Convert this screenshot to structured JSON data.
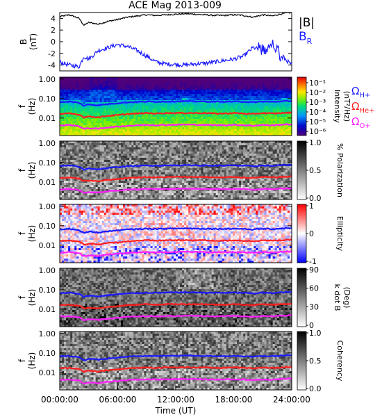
{
  "title": "ACE Mag 2013-009",
  "xaxis": {
    "label": "Time (UT)",
    "ticks": [
      "00:00:00",
      "06:00:00",
      "12:00:00",
      "18:00:00",
      "24:00:00"
    ],
    "range_hours": [
      0,
      24
    ]
  },
  "colors": {
    "B_total": "#000000",
    "B_R": "#1a1aff",
    "omega_H": "#1a1aff",
    "omega_He": "#ff2020",
    "omega_O": "#ff20ff"
  },
  "legend_top": {
    "b_total": "|B|",
    "b_r": "B",
    "b_r_sub": "R"
  },
  "legend_gyro": {
    "omega": "Ω",
    "h": "H+",
    "he": "He+",
    "o": "O+"
  },
  "panel_ylabel": "f",
  "panel_yunit": "(Hz)",
  "panel_yticks": [
    "1.00",
    "0.10",
    "0.01"
  ],
  "chart_data": [
    {
      "type": "line",
      "panel": "magnetic-field",
      "ylabel": "B",
      "yunit": "(nT)",
      "ylim": [
        -5,
        5
      ],
      "yticks": [
        "4",
        "2",
        "0",
        "-2",
        "-4"
      ],
      "x_hours": [
        0,
        1,
        2,
        2.5,
        3,
        4,
        5,
        6,
        7,
        8,
        9,
        10,
        11,
        12,
        13,
        14,
        15,
        16,
        17,
        18,
        19,
        20,
        21,
        22,
        23,
        24
      ],
      "series": [
        {
          "name": "|B|",
          "values": [
            4.3,
            4.6,
            4.0,
            2.8,
            3.3,
            3.0,
            3.5,
            3.8,
            4.2,
            4.4,
            4.6,
            4.5,
            4.6,
            4.7,
            4.8,
            4.7,
            4.6,
            4.5,
            4.5,
            4.6,
            4.5,
            4.2,
            4.6,
            4.4,
            4.8,
            5.0
          ]
        },
        {
          "name": "B_R",
          "values": [
            -3.5,
            -4.0,
            -4.3,
            -2.5,
            -3.0,
            -1.5,
            -1.0,
            -0.5,
            -0.8,
            -1.5,
            -2.5,
            -3.5,
            -3.8,
            -3.9,
            -4.0,
            -3.8,
            -3.7,
            -3.5,
            -3.2,
            -3.0,
            -2.5,
            -1.0,
            -1.5,
            -0.5,
            -2.5,
            -4.0
          ]
        }
      ]
    },
    {
      "type": "heatmap",
      "panel": "intensity",
      "colorbar_label": "Intensity",
      "colorbar_unit": "(nT²/Hz)",
      "colorbar_ticks": [
        "10⁻¹",
        "10⁻²",
        "10⁻³",
        "10⁻⁴",
        "10⁻⁵",
        "10⁻⁶"
      ]
    },
    {
      "type": "heatmap",
      "panel": "polarization",
      "colorbar_label": "% Polarization",
      "colorbar_ticks": [
        "1.0",
        "0.5",
        "0.0"
      ]
    },
    {
      "type": "heatmap",
      "panel": "ellipticity",
      "colorbar_label": "Ellipticity",
      "colorbar_ticks": [
        "1",
        "0",
        "-1"
      ]
    },
    {
      "type": "heatmap",
      "panel": "k-dot-b",
      "colorbar_label": "k dot B",
      "colorbar_unit": "(Deg)",
      "colorbar_ticks": [
        "90",
        "60",
        "30",
        "0"
      ]
    },
    {
      "type": "heatmap",
      "panel": "coherency",
      "colorbar_label": "Coherency",
      "colorbar_ticks": [
        "1.0",
        "0.5",
        "0.0"
      ]
    }
  ],
  "gyrofrequency_hz": {
    "x_hours": [
      0,
      1,
      2,
      2.5,
      3,
      4,
      5,
      6,
      7,
      8,
      9,
      10,
      11,
      12,
      13,
      14,
      15,
      16,
      17,
      18,
      19,
      20,
      21,
      22,
      23,
      24
    ],
    "H": [
      0.065,
      0.07,
      0.06,
      0.042,
      0.05,
      0.045,
      0.052,
      0.058,
      0.064,
      0.067,
      0.07,
      0.069,
      0.07,
      0.072,
      0.073,
      0.072,
      0.07,
      0.069,
      0.069,
      0.07,
      0.069,
      0.064,
      0.07,
      0.067,
      0.073,
      0.076
    ],
    "He": [
      0.016,
      0.017,
      0.015,
      0.011,
      0.012,
      0.011,
      0.013,
      0.014,
      0.016,
      0.017,
      0.018,
      0.017,
      0.018,
      0.018,
      0.018,
      0.018,
      0.018,
      0.017,
      0.017,
      0.018,
      0.017,
      0.016,
      0.018,
      0.017,
      0.018,
      0.019
    ],
    "O": [
      0.0041,
      0.0044,
      0.0038,
      0.0027,
      0.003,
      0.0028,
      0.0033,
      0.0036,
      0.004,
      0.0042,
      0.0044,
      0.0043,
      0.0044,
      0.0045,
      0.0046,
      0.0045,
      0.0044,
      0.0043,
      0.0043,
      0.0044,
      0.0043,
      0.004,
      0.0044,
      0.0042,
      0.0046,
      0.0048
    ]
  }
}
